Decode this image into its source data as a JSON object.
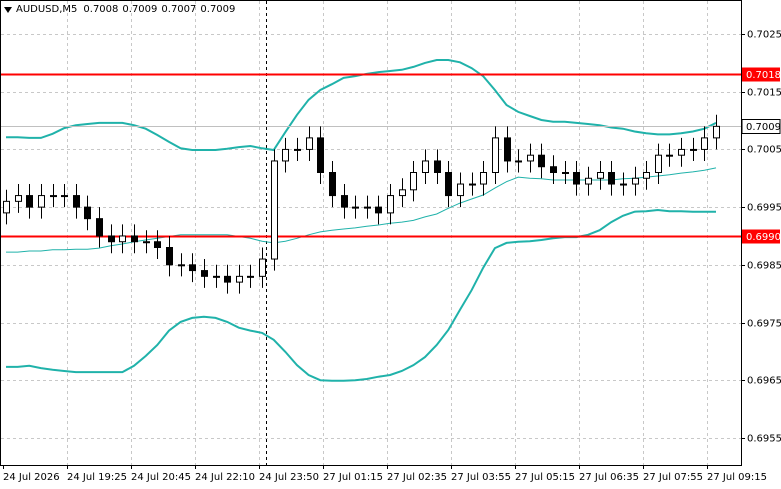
{
  "chart_data": {
    "type": "candlestick",
    "symbol": "AUDUSD,M5",
    "quote": [
      0.7008,
      0.7009,
      0.7007,
      0.7009
    ],
    "open": [
      0.6994,
      0.6996,
      0.6997,
      0.6995,
      0.6997,
      0.6997,
      0.6997,
      0.6995,
      0.6993,
      0.699,
      0.6989,
      0.699,
      0.6989,
      0.6989,
      0.6988,
      0.6985,
      0.6985,
      0.6984,
      0.6983,
      0.6983,
      0.6982,
      0.6983,
      0.6983,
      0.6986,
      0.7003,
      0.7005,
      0.7005,
      0.7007,
      0.7001,
      0.6997,
      0.6995,
      0.6995,
      0.6995,
      0.6994,
      0.6997,
      0.6998,
      0.7001,
      0.7003,
      0.7001,
      0.6997,
      0.6999,
      0.6999,
      0.7001,
      0.7007,
      0.7003,
      0.7003,
      0.7004,
      0.7002,
      0.7001,
      0.7001,
      0.6999,
      0.7,
      0.7001,
      0.6999,
      0.6999,
      0.7,
      0.7001,
      0.7004,
      0.7004,
      0.7005,
      0.7005,
      0.7007
    ],
    "high": [
      0.6998,
      0.6999,
      0.6999,
      0.6999,
      0.6999,
      0.6999,
      0.6999,
      0.6997,
      0.6995,
      0.6992,
      0.6992,
      0.6992,
      0.6991,
      0.6991,
      0.699,
      0.6987,
      0.6987,
      0.6986,
      0.6985,
      0.6985,
      0.6985,
      0.6985,
      0.6988,
      0.7005,
      0.7007,
      0.7007,
      0.7009,
      0.7009,
      0.7003,
      0.6999,
      0.6997,
      0.6997,
      0.6997,
      0.6999,
      0.7,
      0.7003,
      0.7005,
      0.7005,
      0.7003,
      0.7001,
      0.7001,
      0.7003,
      0.7009,
      0.7009,
      0.7005,
      0.7006,
      0.7006,
      0.7004,
      0.7003,
      0.7003,
      0.7002,
      0.7003,
      0.7003,
      0.7001,
      0.7002,
      0.7003,
      0.7006,
      0.7006,
      0.7007,
      0.7007,
      0.7009,
      0.7011
    ],
    "low": [
      0.6992,
      0.6994,
      0.6993,
      0.6993,
      0.6995,
      0.6995,
      0.6993,
      0.6991,
      0.6988,
      0.6987,
      0.6987,
      0.6987,
      0.6987,
      0.6986,
      0.6983,
      0.6983,
      0.6982,
      0.6981,
      0.6981,
      0.698,
      0.698,
      0.6981,
      0.6981,
      0.6984,
      0.7001,
      0.7003,
      0.7003,
      0.6999,
      0.6995,
      0.6993,
      0.6993,
      0.6993,
      0.6992,
      0.6992,
      0.6995,
      0.6996,
      0.6999,
      0.6999,
      0.6995,
      0.6995,
      0.6997,
      0.6997,
      0.6999,
      0.7001,
      0.7001,
      0.7001,
      0.7,
      0.6999,
      0.6999,
      0.6997,
      0.6997,
      0.6998,
      0.6997,
      0.6997,
      0.6997,
      0.6998,
      0.6999,
      0.7002,
      0.7002,
      0.7003,
      0.7003,
      0.7005
    ],
    "close": [
      0.6996,
      0.6997,
      0.6995,
      0.6997,
      0.6997,
      0.6997,
      0.6995,
      0.6993,
      0.699,
      0.6989,
      0.699,
      0.6989,
      0.6989,
      0.6988,
      0.6985,
      0.6985,
      0.6984,
      0.6983,
      0.6983,
      0.6982,
      0.6983,
      0.6983,
      0.6986,
      0.7003,
      0.7005,
      0.7005,
      0.7007,
      0.7001,
      0.6997,
      0.6995,
      0.6995,
      0.6995,
      0.6994,
      0.6997,
      0.6998,
      0.7001,
      0.7003,
      0.7001,
      0.6997,
      0.6999,
      0.6999,
      0.7001,
      0.7007,
      0.7003,
      0.7003,
      0.7004,
      0.7002,
      0.7001,
      0.7001,
      0.6999,
      0.7,
      0.7001,
      0.6999,
      0.6999,
      0.7,
      0.7001,
      0.7004,
      0.7004,
      0.7005,
      0.7005,
      0.7007,
      0.7009
    ],
    "series": [
      {
        "color": "#20b2aa",
        "width": 2,
        "values": [
          0.70071,
          0.70071,
          0.7007,
          0.7007,
          0.70077,
          0.70087,
          0.70092,
          0.70094,
          0.70096,
          0.70096,
          0.70096,
          0.70092,
          0.70086,
          0.70075,
          0.70063,
          0.70052,
          0.70049,
          0.70049,
          0.70049,
          0.70051,
          0.70054,
          0.70056,
          0.70052,
          0.70049,
          0.7008,
          0.7011,
          0.70136,
          0.70153,
          0.70163,
          0.70174,
          0.70177,
          0.70181,
          0.70184,
          0.70186,
          0.70188,
          0.70193,
          0.702,
          0.70205,
          0.70205,
          0.70201,
          0.70191,
          0.70177,
          0.70153,
          0.70127,
          0.70115,
          0.70108,
          0.70101,
          0.70098,
          0.70098,
          0.70096,
          0.70094,
          0.70092,
          0.70088,
          0.70086,
          0.70081,
          0.70078,
          0.70076,
          0.70076,
          0.70078,
          0.70081,
          0.70086,
          0.70096
        ]
      },
      {
        "color": "#20b2aa",
        "width": 1,
        "values": [
          0.69872,
          0.69872,
          0.69874,
          0.69874,
          0.69876,
          0.69876,
          0.69877,
          0.69877,
          0.69879,
          0.69883,
          0.69886,
          0.6989,
          0.69893,
          0.69896,
          0.69899,
          0.69902,
          0.69902,
          0.69902,
          0.69902,
          0.69902,
          0.69899,
          0.69896,
          0.69891,
          0.69888,
          0.69891,
          0.69896,
          0.69902,
          0.69907,
          0.6991,
          0.69912,
          0.69914,
          0.69917,
          0.69919,
          0.69922,
          0.69924,
          0.69927,
          0.69933,
          0.69938,
          0.69948,
          0.69957,
          0.69964,
          0.69971,
          0.69983,
          0.69994,
          0.70002,
          0.7,
          0.69999,
          0.69997,
          0.69997,
          0.69997,
          0.69997,
          0.69997,
          0.69997,
          0.69999,
          0.7,
          0.70002,
          0.70004,
          0.70006,
          0.70009,
          0.70011,
          0.70014,
          0.70018
        ]
      },
      {
        "color": "#20b2aa",
        "width": 2,
        "values": [
          0.69673,
          0.69673,
          0.69675,
          0.69671,
          0.69668,
          0.69666,
          0.69664,
          0.69664,
          0.69664,
          0.69664,
          0.69664,
          0.69675,
          0.69692,
          0.69711,
          0.69736,
          0.69751,
          0.69758,
          0.6976,
          0.69758,
          0.69751,
          0.69741,
          0.69736,
          0.69732,
          0.6972,
          0.69699,
          0.69676,
          0.69659,
          0.6965,
          0.69649,
          0.69649,
          0.6965,
          0.69652,
          0.69656,
          0.69659,
          0.69666,
          0.69676,
          0.6969,
          0.69711,
          0.69737,
          0.69772,
          0.69806,
          0.69845,
          0.69879,
          0.69888,
          0.6989,
          0.69891,
          0.69893,
          0.69896,
          0.69898,
          0.69898,
          0.69902,
          0.6991,
          0.69924,
          0.69935,
          0.69942,
          0.69943,
          0.69945,
          0.69943,
          0.69943,
          0.69942,
          0.69942,
          0.69942
        ]
      }
    ],
    "levels": [
      {
        "value": 0.7018,
        "color": "#ff0000"
      },
      {
        "value": 0.699,
        "label": "0.6990",
        "color": "#ff0000"
      }
    ],
    "last_price": 0.7009,
    "x_labels": [
      "24 Jul 2026",
      "24 Jul 19:25",
      "24 Jul 20:45",
      "24 Jul 22:10",
      "24 Jul 23:50",
      "27 Jul 01:15",
      "27 Jul 02:35",
      "27 Jul 03:55",
      "27 Jul 05:15",
      "27 Jul 06:35",
      "27 Jul 07:55",
      "27 Jul 09:15"
    ],
    "ylim": [
      0.69503,
      0.70309
    ],
    "yticks": [
      0.7025,
      0.7015,
      0.7005,
      0.6995,
      0.6985,
      0.6975,
      0.6965,
      0.6955
    ],
    "grid": true
  }
}
